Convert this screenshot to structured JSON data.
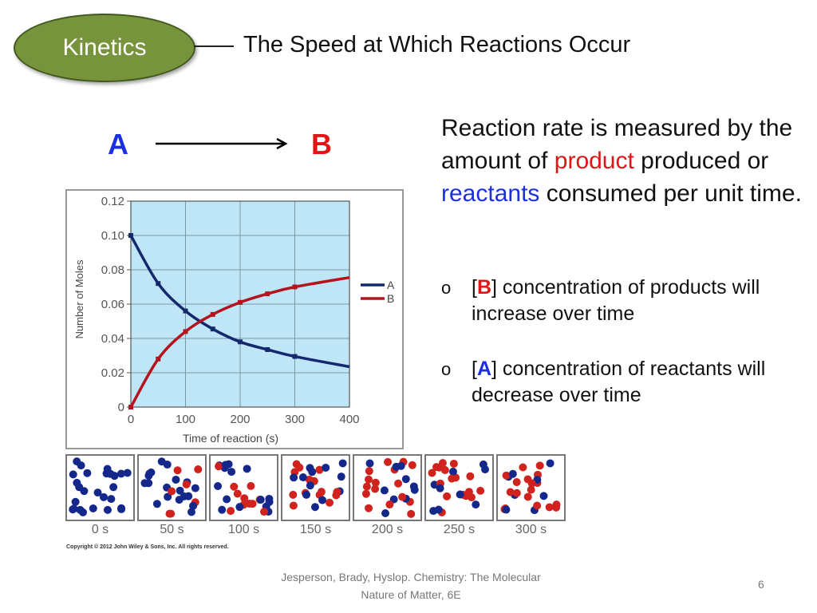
{
  "header": {
    "badge": "Kinetics",
    "title": "The Speed at Which Reactions Occur"
  },
  "equation": {
    "reactant": "A",
    "product": "B"
  },
  "body": {
    "intro_1": "Reaction rate is measured by the amount of ",
    "product_word": "product",
    "intro_2": " produced or ",
    "reactants_word": "reactants",
    "intro_3": " consumed per unit time.",
    "bullets": [
      {
        "marker": "o",
        "bracket_open": "[",
        "species": "B",
        "bracket_close": "]",
        "text": " concentration of products will increase over time",
        "color": "#e01515"
      },
      {
        "marker": "o",
        "bracket_open": "[",
        "species": "A",
        "bracket_close": "]",
        "text": " concentration of reactants will decrease over time",
        "color": "#1c2fe0"
      }
    ]
  },
  "chart_data": {
    "type": "line",
    "xlabel": "Time of reaction (s)",
    "ylabel": "Number of Moles",
    "xlim": [
      0,
      400
    ],
    "ylim": [
      0,
      0.12
    ],
    "xticks": [
      "0",
      "100",
      "200",
      "300",
      "400"
    ],
    "yticks": [
      "0",
      "0.02",
      "0.04",
      "0.06",
      "0.08",
      "0.10",
      "0.12"
    ],
    "grid": true,
    "legend": "right",
    "background": "#bfe6f7",
    "series": [
      {
        "name": "A",
        "color": "#14286e",
        "x": [
          0,
          50,
          100,
          150,
          200,
          250,
          300,
          400
        ],
        "y": [
          0.1,
          0.072,
          0.056,
          0.0455,
          0.038,
          0.0335,
          0.0295,
          0.0235
        ],
        "markers_up_to": 300
      },
      {
        "name": "B",
        "color": "#b4141e",
        "x": [
          0,
          50,
          100,
          150,
          200,
          250,
          300,
          400
        ],
        "y": [
          0,
          0.028,
          0.044,
          0.054,
          0.061,
          0.066,
          0.07,
          0.0755
        ],
        "markers_up_to": 300
      }
    ]
  },
  "particle_panels": {
    "labels": [
      "0 s",
      "50 s",
      "100 s",
      "150 s",
      "200 s",
      "250 s",
      "300 s"
    ],
    "product_fraction": [
      0,
      0.28,
      0.44,
      0.54,
      0.61,
      0.66,
      0.7
    ],
    "reactant_color": "#14288c",
    "product_color": "#d0231e"
  },
  "copyright": "Copyright © 2012 John Wiley & Sons, Inc. All rights reserved.",
  "footer": {
    "citation": "Jesperson, Brady, Hyslop. Chemistry: The Molecular Nature of Matter, 6E",
    "page": "6"
  }
}
